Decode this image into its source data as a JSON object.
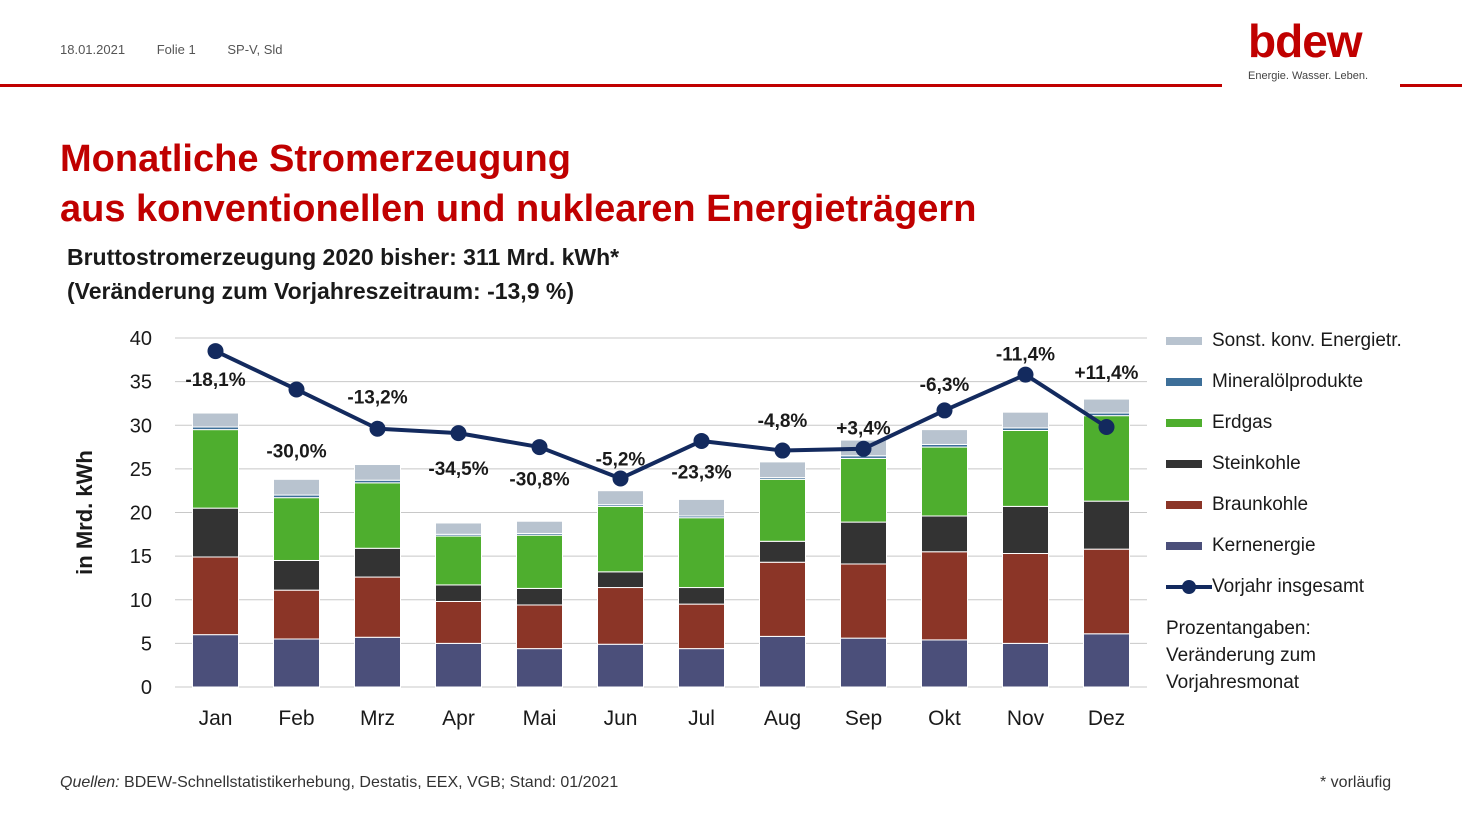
{
  "header": {
    "date": "18.01.2021",
    "slide": "Folie 1",
    "author": "SP-V, Sld",
    "logo_word": "bdew",
    "logo_tagline": "Energie. Wasser. Leben."
  },
  "title_line1": "Monatliche Stromerzeugung",
  "title_line2": "aus konventionellen und nuklearen Energieträgern",
  "subtitle_line1": "Bruttostromerzeugung 2020 bisher: 311 Mrd. kWh*",
  "subtitle_line2": "(Veränderung zum Vorjahreszeitraum: -13,9 %)",
  "colors": {
    "kernenergie": "#4b4f7a",
    "braunkohle": "#8b3527",
    "steinkohle": "#333333",
    "erdgas": "#4eae2e",
    "mineraloel": "#3d6f99",
    "sonstige": "#b8c3cf",
    "vorjahr": "#132a5e",
    "accent": "#c00000"
  },
  "chart_data": {
    "type": "bar",
    "stacked": true,
    "ylabel": "in Mrd. kWh",
    "ylim": [
      0,
      40
    ],
    "yticks": [
      0,
      5,
      10,
      15,
      20,
      25,
      30,
      35,
      40
    ],
    "grid": true,
    "legend_position": "right",
    "categories": [
      "Jan",
      "Feb",
      "Mrz",
      "Apr",
      "Mai",
      "Jun",
      "Jul",
      "Aug",
      "Sep",
      "Okt",
      "Nov",
      "Dez"
    ],
    "series": [
      {
        "name": "Kernenergie",
        "color_key": "kernenergie",
        "values": [
          6.0,
          5.5,
          5.7,
          5.0,
          4.4,
          4.9,
          4.4,
          5.8,
          5.6,
          5.4,
          5.0,
          6.1
        ]
      },
      {
        "name": "Braunkohle",
        "color_key": "braunkohle",
        "values": [
          8.9,
          5.6,
          6.9,
          4.8,
          5.0,
          6.5,
          5.1,
          8.5,
          8.5,
          10.1,
          10.3,
          9.7
        ]
      },
      {
        "name": "Steinkohle",
        "color_key": "steinkohle",
        "values": [
          5.6,
          3.4,
          3.3,
          1.9,
          1.9,
          1.8,
          1.9,
          2.4,
          4.8,
          4.1,
          5.4,
          5.5
        ]
      },
      {
        "name": "Erdgas",
        "color_key": "erdgas",
        "values": [
          9.0,
          7.2,
          7.5,
          5.6,
          6.1,
          7.5,
          8.0,
          7.1,
          7.3,
          7.9,
          8.7,
          9.8
        ]
      },
      {
        "name": "Mineralölprodukte",
        "color_key": "mineraloel",
        "values": [
          0.3,
          0.3,
          0.3,
          0.2,
          0.2,
          0.2,
          0.2,
          0.2,
          0.3,
          0.3,
          0.3,
          0.3
        ]
      },
      {
        "name": "Sonst. konv. Energietr.",
        "color_key": "sonstige",
        "values": [
          1.6,
          1.8,
          1.8,
          1.3,
          1.4,
          1.6,
          1.9,
          1.8,
          1.8,
          1.7,
          1.8,
          1.6
        ]
      }
    ],
    "line": {
      "name": "Vorjahr insgesamt",
      "color_key": "vorjahr",
      "values": [
        38.5,
        34.1,
        29.6,
        29.1,
        27.5,
        23.9,
        28.2,
        27.1,
        27.3,
        31.7,
        35.8,
        29.8
      ]
    },
    "annotations": [
      "-18,1%",
      "-30,0%",
      "-13,2%",
      "-34,5%",
      "-30,8%",
      "-5,2%",
      "-23,3%",
      "-4,8%",
      "+3,4%",
      "-6,3%",
      "-11,4%",
      "+11,4%"
    ],
    "annotation_y": [
      35.2,
      27.0,
      33.2,
      25.0,
      23.8,
      26.1,
      24.6,
      30.5,
      29.6,
      34.6,
      38.1,
      36.0
    ]
  },
  "legend_note_lines": [
    "Prozentangaben:",
    "Veränderung zum",
    "Vorjahresmonat"
  ],
  "footer": {
    "sources_label": "Quellen:",
    "sources_text": " BDEW-Schnellstatistikerhebung, Destatis, EEX, VGB; Stand: 01/2021",
    "footnote": "* vorläufig"
  }
}
